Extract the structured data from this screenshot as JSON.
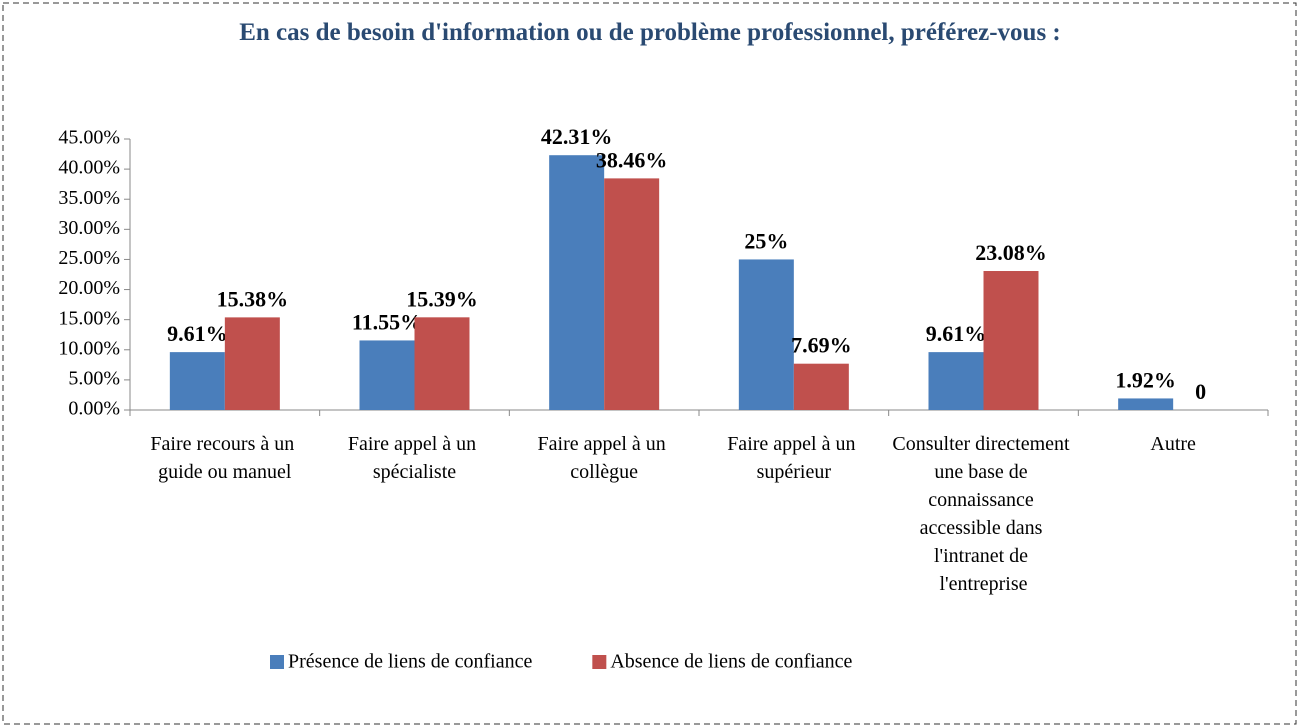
{
  "chart_data": {
    "type": "bar",
    "title": "En cas de besoin d'information ou de problème professionnel, préférez-vous :",
    "categories": [
      "Faire recours à un guide ou manuel",
      "Faire appel à un spécialiste",
      "Faire appel à un collègue",
      "Faire appel à un supérieur",
      "Consulter directement une base de connaissance accessible dans l'intranet de l'entreprise",
      "Autre"
    ],
    "series": [
      {
        "name": "Présence de liens de confiance",
        "color": "#4a7ebb",
        "values": [
          9.61,
          11.55,
          42.31,
          25,
          9.61,
          1.92
        ],
        "value_labels": [
          "9.61%",
          "11.55%",
          "42.31%",
          "25%",
          "9.61%",
          "1.92%"
        ]
      },
      {
        "name": "Absence de liens de confiance",
        "color": "#c0504d",
        "values": [
          15.38,
          15.39,
          38.46,
          7.69,
          23.08,
          0
        ],
        "value_labels": [
          "15.38%",
          "15.39%",
          "38.46%",
          "7.69%",
          "23.08%",
          "0"
        ]
      }
    ],
    "ylim": [
      0,
      45
    ],
    "yticks": [
      {
        "value": 0,
        "label": "0.00%"
      },
      {
        "value": 5,
        "label": "5.00%"
      },
      {
        "value": 10,
        "label": "10.00%"
      },
      {
        "value": 15,
        "label": "15.00%"
      },
      {
        "value": 20,
        "label": "20.00%"
      },
      {
        "value": 25,
        "label": "25.00%"
      },
      {
        "value": 30,
        "label": "30.00%"
      },
      {
        "value": 35,
        "label": "35.00%"
      },
      {
        "value": 40,
        "label": "40.00%"
      },
      {
        "value": 45,
        "label": "45.00%"
      }
    ],
    "legend": "bottom"
  }
}
